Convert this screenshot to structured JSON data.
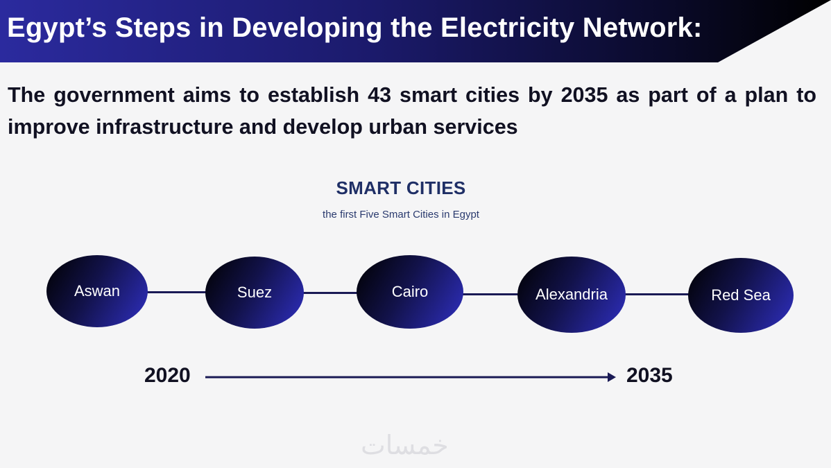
{
  "header": {
    "title": "Egypt’s Steps in Developing the Electricity Network:"
  },
  "lead": "The government aims to establish 43 smart cities by 2035 as part of a plan to improve infrastructure and develop urban services",
  "smart_cities": {
    "title": "SMART CITIES",
    "subtitle": "the first Five Smart Cities in Egypt",
    "cities": [
      "Aswan",
      "Suez",
      "Cairo",
      "Alexandria",
      "Red Sea"
    ]
  },
  "timeline": {
    "start": "2020",
    "end": "2035"
  },
  "watermark": "خمسات",
  "colors": {
    "title_gradient_start": "#2b2a9e",
    "title_gradient_end": "#000000",
    "node_dark": "#000000",
    "node_light": "#2f2fc0",
    "heading": "#1f2f66",
    "connector": "#1a1a55"
  }
}
